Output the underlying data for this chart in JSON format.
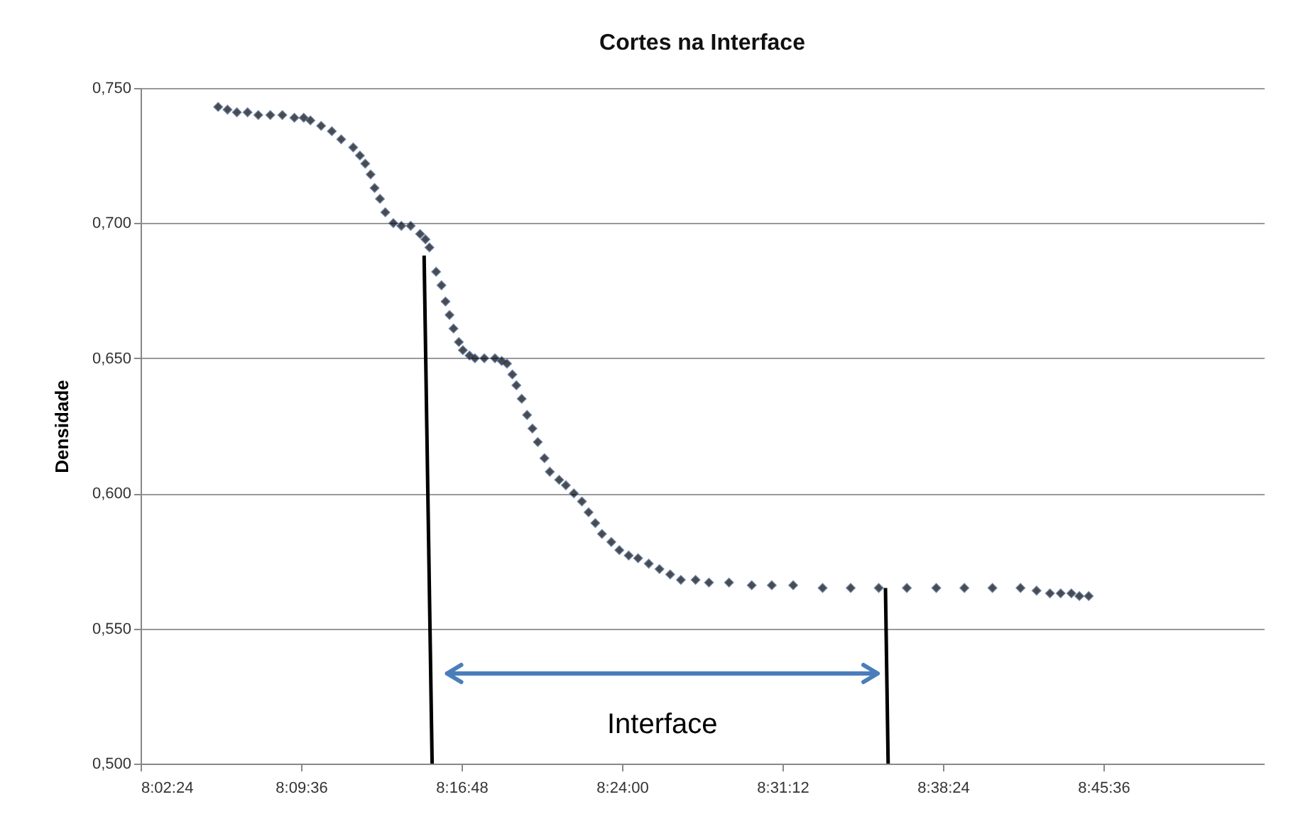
{
  "chart_data": {
    "type": "scatter",
    "title": "Cortes na Interface",
    "ylabel": "Densidade",
    "xlim": [
      8.04,
      8.88
    ],
    "ylim": [
      0.5,
      0.75
    ],
    "xticks": [
      {
        "value": 8.04,
        "label": "8:02:24"
      },
      {
        "value": 8.16,
        "label": "8:09:36"
      },
      {
        "value": 8.28,
        "label": "8:16:48"
      },
      {
        "value": 8.4,
        "label": "8:24:00"
      },
      {
        "value": 8.52,
        "label": "8:31:12"
      },
      {
        "value": 8.64,
        "label": "8:38:24"
      },
      {
        "value": 8.76,
        "label": "8:45:36"
      }
    ],
    "yticks": [
      {
        "value": 0.5,
        "label": "0,500"
      },
      {
        "value": 0.55,
        "label": "0,550"
      },
      {
        "value": 0.6,
        "label": "0,600"
      },
      {
        "value": 0.65,
        "label": "0,650"
      },
      {
        "value": 0.7,
        "label": "0,700"
      },
      {
        "value": 0.75,
        "label": "0,750"
      }
    ],
    "grid": "y",
    "series": [
      {
        "color": "#000000",
        "marker": "diamond",
        "x": [
          8.098,
          8.105,
          8.112,
          8.12,
          8.128,
          8.137,
          8.146,
          8.155,
          8.162,
          8.167,
          8.175,
          8.183,
          8.19,
          8.199,
          8.204,
          8.208,
          8.212,
          8.215,
          8.219,
          8.223,
          8.229,
          8.235,
          8.242,
          8.249,
          8.253,
          8.256,
          8.261,
          8.265,
          8.268,
          8.271,
          8.274,
          8.278,
          8.281,
          8.286,
          8.29,
          8.297,
          8.305,
          8.31,
          8.314,
          8.318,
          8.321,
          8.325,
          8.329,
          8.333,
          8.337,
          8.342,
          8.346,
          8.353,
          8.358,
          8.364,
          8.37,
          8.375,
          8.38,
          8.385,
          8.392,
          8.398,
          8.405,
          8.412,
          8.42,
          8.428,
          8.436,
          8.444,
          8.455,
          8.465,
          8.48,
          8.497,
          8.512,
          8.528,
          8.55,
          8.571,
          8.592,
          8.613,
          8.635,
          8.656,
          8.677,
          8.698,
          8.71,
          8.72,
          8.728,
          8.736,
          8.742,
          8.749
        ],
        "values": [
          0.743,
          0.742,
          0.741,
          0.741,
          0.74,
          0.74,
          0.74,
          0.739,
          0.739,
          0.738,
          0.736,
          0.734,
          0.731,
          0.728,
          0.725,
          0.722,
          0.718,
          0.713,
          0.709,
          0.704,
          0.7,
          0.699,
          0.699,
          0.696,
          0.694,
          0.691,
          0.682,
          0.677,
          0.671,
          0.666,
          0.661,
          0.656,
          0.653,
          0.651,
          0.65,
          0.65,
          0.65,
          0.649,
          0.648,
          0.644,
          0.64,
          0.635,
          0.629,
          0.624,
          0.619,
          0.613,
          0.608,
          0.605,
          0.603,
          0.6,
          0.597,
          0.593,
          0.589,
          0.585,
          0.582,
          0.579,
          0.577,
          0.576,
          0.574,
          0.572,
          0.57,
          0.568,
          0.568,
          0.567,
          0.567,
          0.566,
          0.566,
          0.566,
          0.565,
          0.565,
          0.565,
          0.565,
          0.565,
          0.565,
          0.565,
          0.565,
          0.564,
          0.563,
          0.563,
          0.563,
          0.562,
          0.562
        ]
      },
      {
        "type": "line",
        "color": "#000000",
        "x": [
          8.252,
          8.258
        ],
        "values": [
          0.688,
          0.5
        ]
      },
      {
        "type": "line",
        "color": "#000000",
        "x": [
          8.597,
          8.599
        ],
        "values": [
          0.565,
          0.5
        ]
      }
    ],
    "annotations": [
      "Interface"
    ]
  }
}
